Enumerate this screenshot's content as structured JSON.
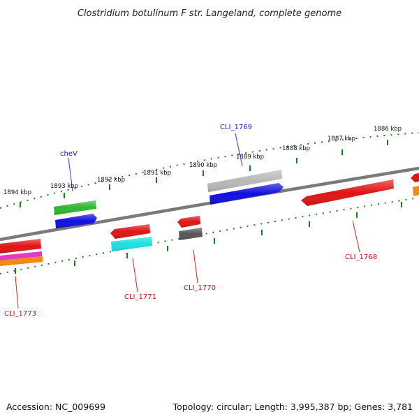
{
  "title": "Clostridium botulinum F str. Langeland, complete genome",
  "footer": {
    "accession": "Accession: NC_009699",
    "stats": "Topology: circular; Length: 3,995,387 bp; Genes: 3,781"
  },
  "colors": {
    "backbone": "#7a7a7a",
    "scale_ticks": "#1e7a1e",
    "label_blue": "#1a1ad6",
    "label_red": "#cc1414",
    "leader_blue": "#3a3ad8",
    "leader_red": "#d02424"
  },
  "scale_labels": [
    "1894 kbp",
    "1893 kbp",
    "1892 kbp",
    "1891 kbp",
    "1890 kbp",
    "1889 kbp",
    "1888 kbp",
    "1887 kbp",
    "1886 kbp"
  ],
  "genes": [
    {
      "label": "cheV",
      "color": "#2db82d",
      "strand": "+",
      "track": "outer"
    },
    {
      "label": "",
      "color": "#1010e0",
      "strand": "+",
      "track": "inner"
    },
    {
      "label": "CLI_1769",
      "color": "#b8b8b8",
      "strand": "-",
      "track": "outer"
    },
    {
      "label": "",
      "color": "#1010e0",
      "strand": "+",
      "track": "inner"
    },
    {
      "label": "CLI_1768",
      "color": "#e01414",
      "strand": "-",
      "track": "below"
    },
    {
      "label": "CLI_1771",
      "color": "#e01414",
      "strand": "-",
      "track": "below"
    },
    {
      "label": "",
      "color": "#19e0e0",
      "strand": "-",
      "track": "below"
    },
    {
      "label": "CLI_1770",
      "color": "#e01414",
      "strand": "-",
      "track": "below"
    },
    {
      "label": "",
      "color": "#555555",
      "strand": "-",
      "track": "below"
    },
    {
      "label": "CLI_1773",
      "color": "#e01414",
      "strand": "-",
      "track": "below"
    },
    {
      "label": "",
      "color": "#e23ac0",
      "strand": "-",
      "track": "below"
    },
    {
      "label": "",
      "color": "#f08a10",
      "strand": "-",
      "track": "below"
    },
    {
      "label": "",
      "color": "#e01414",
      "strand": "-",
      "track": "edge"
    },
    {
      "label": "",
      "color": "#f08a10",
      "strand": "-",
      "track": "edge"
    }
  ]
}
